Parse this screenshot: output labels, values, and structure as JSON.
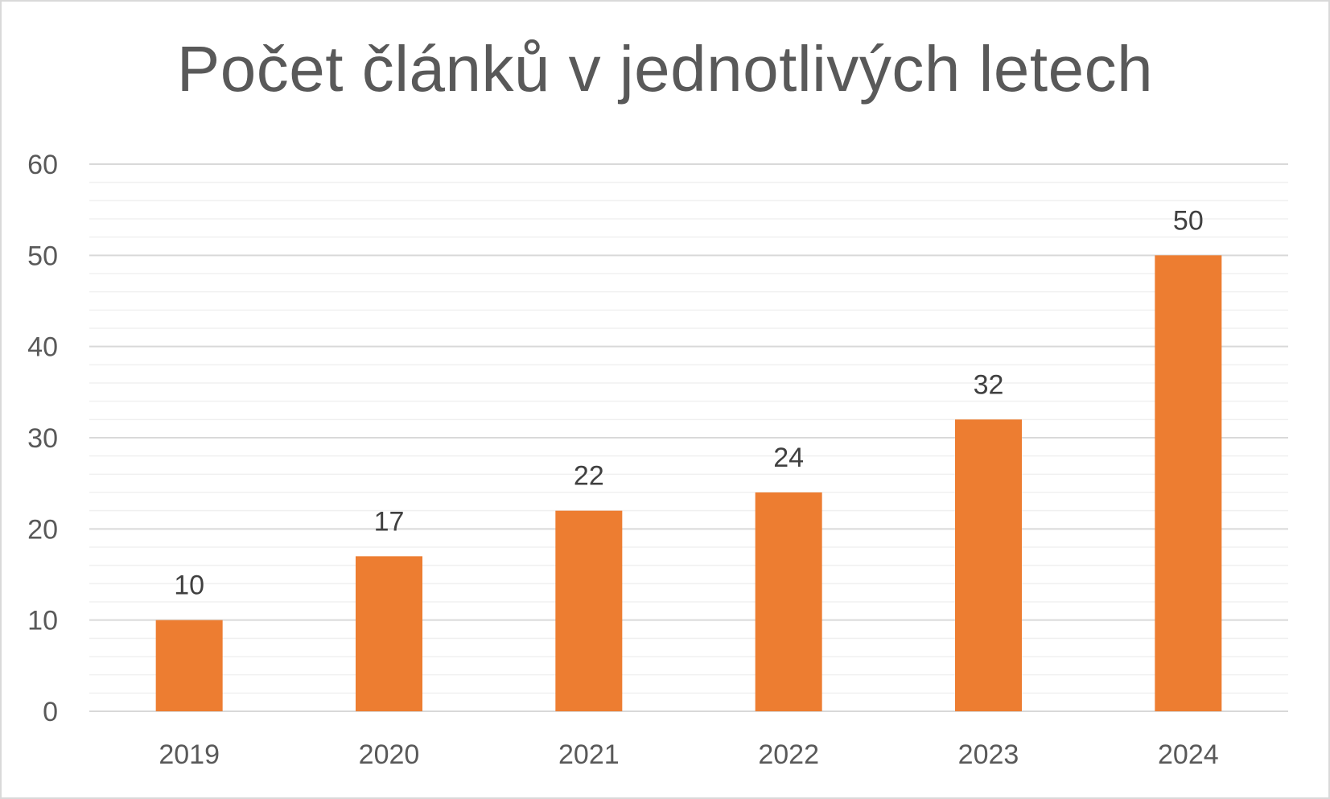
{
  "chart_data": {
    "type": "bar",
    "title": "Počet článků v jednotlivých letech",
    "xlabel": "",
    "ylabel": "",
    "categories": [
      "2019",
      "2020",
      "2021",
      "2022",
      "2023",
      "2024"
    ],
    "values": [
      10,
      17,
      22,
      24,
      32,
      50
    ],
    "data_labels": [
      "10",
      "17",
      "22",
      "24",
      "32",
      "50"
    ],
    "ylim": [
      0,
      60
    ],
    "y_major_ticks": [
      0,
      10,
      20,
      30,
      40,
      50,
      60
    ],
    "y_major_tick_labels": [
      "0",
      "10",
      "20",
      "30",
      "40",
      "50",
      "60"
    ],
    "y_minor_step": 2,
    "grid": true,
    "legend": "none",
    "colors": {
      "bar": "#ED7D31",
      "major_grid": "#d9d9d9",
      "minor_grid": "#f0f0f0",
      "text": "#595959",
      "data_label": "#404040"
    }
  }
}
